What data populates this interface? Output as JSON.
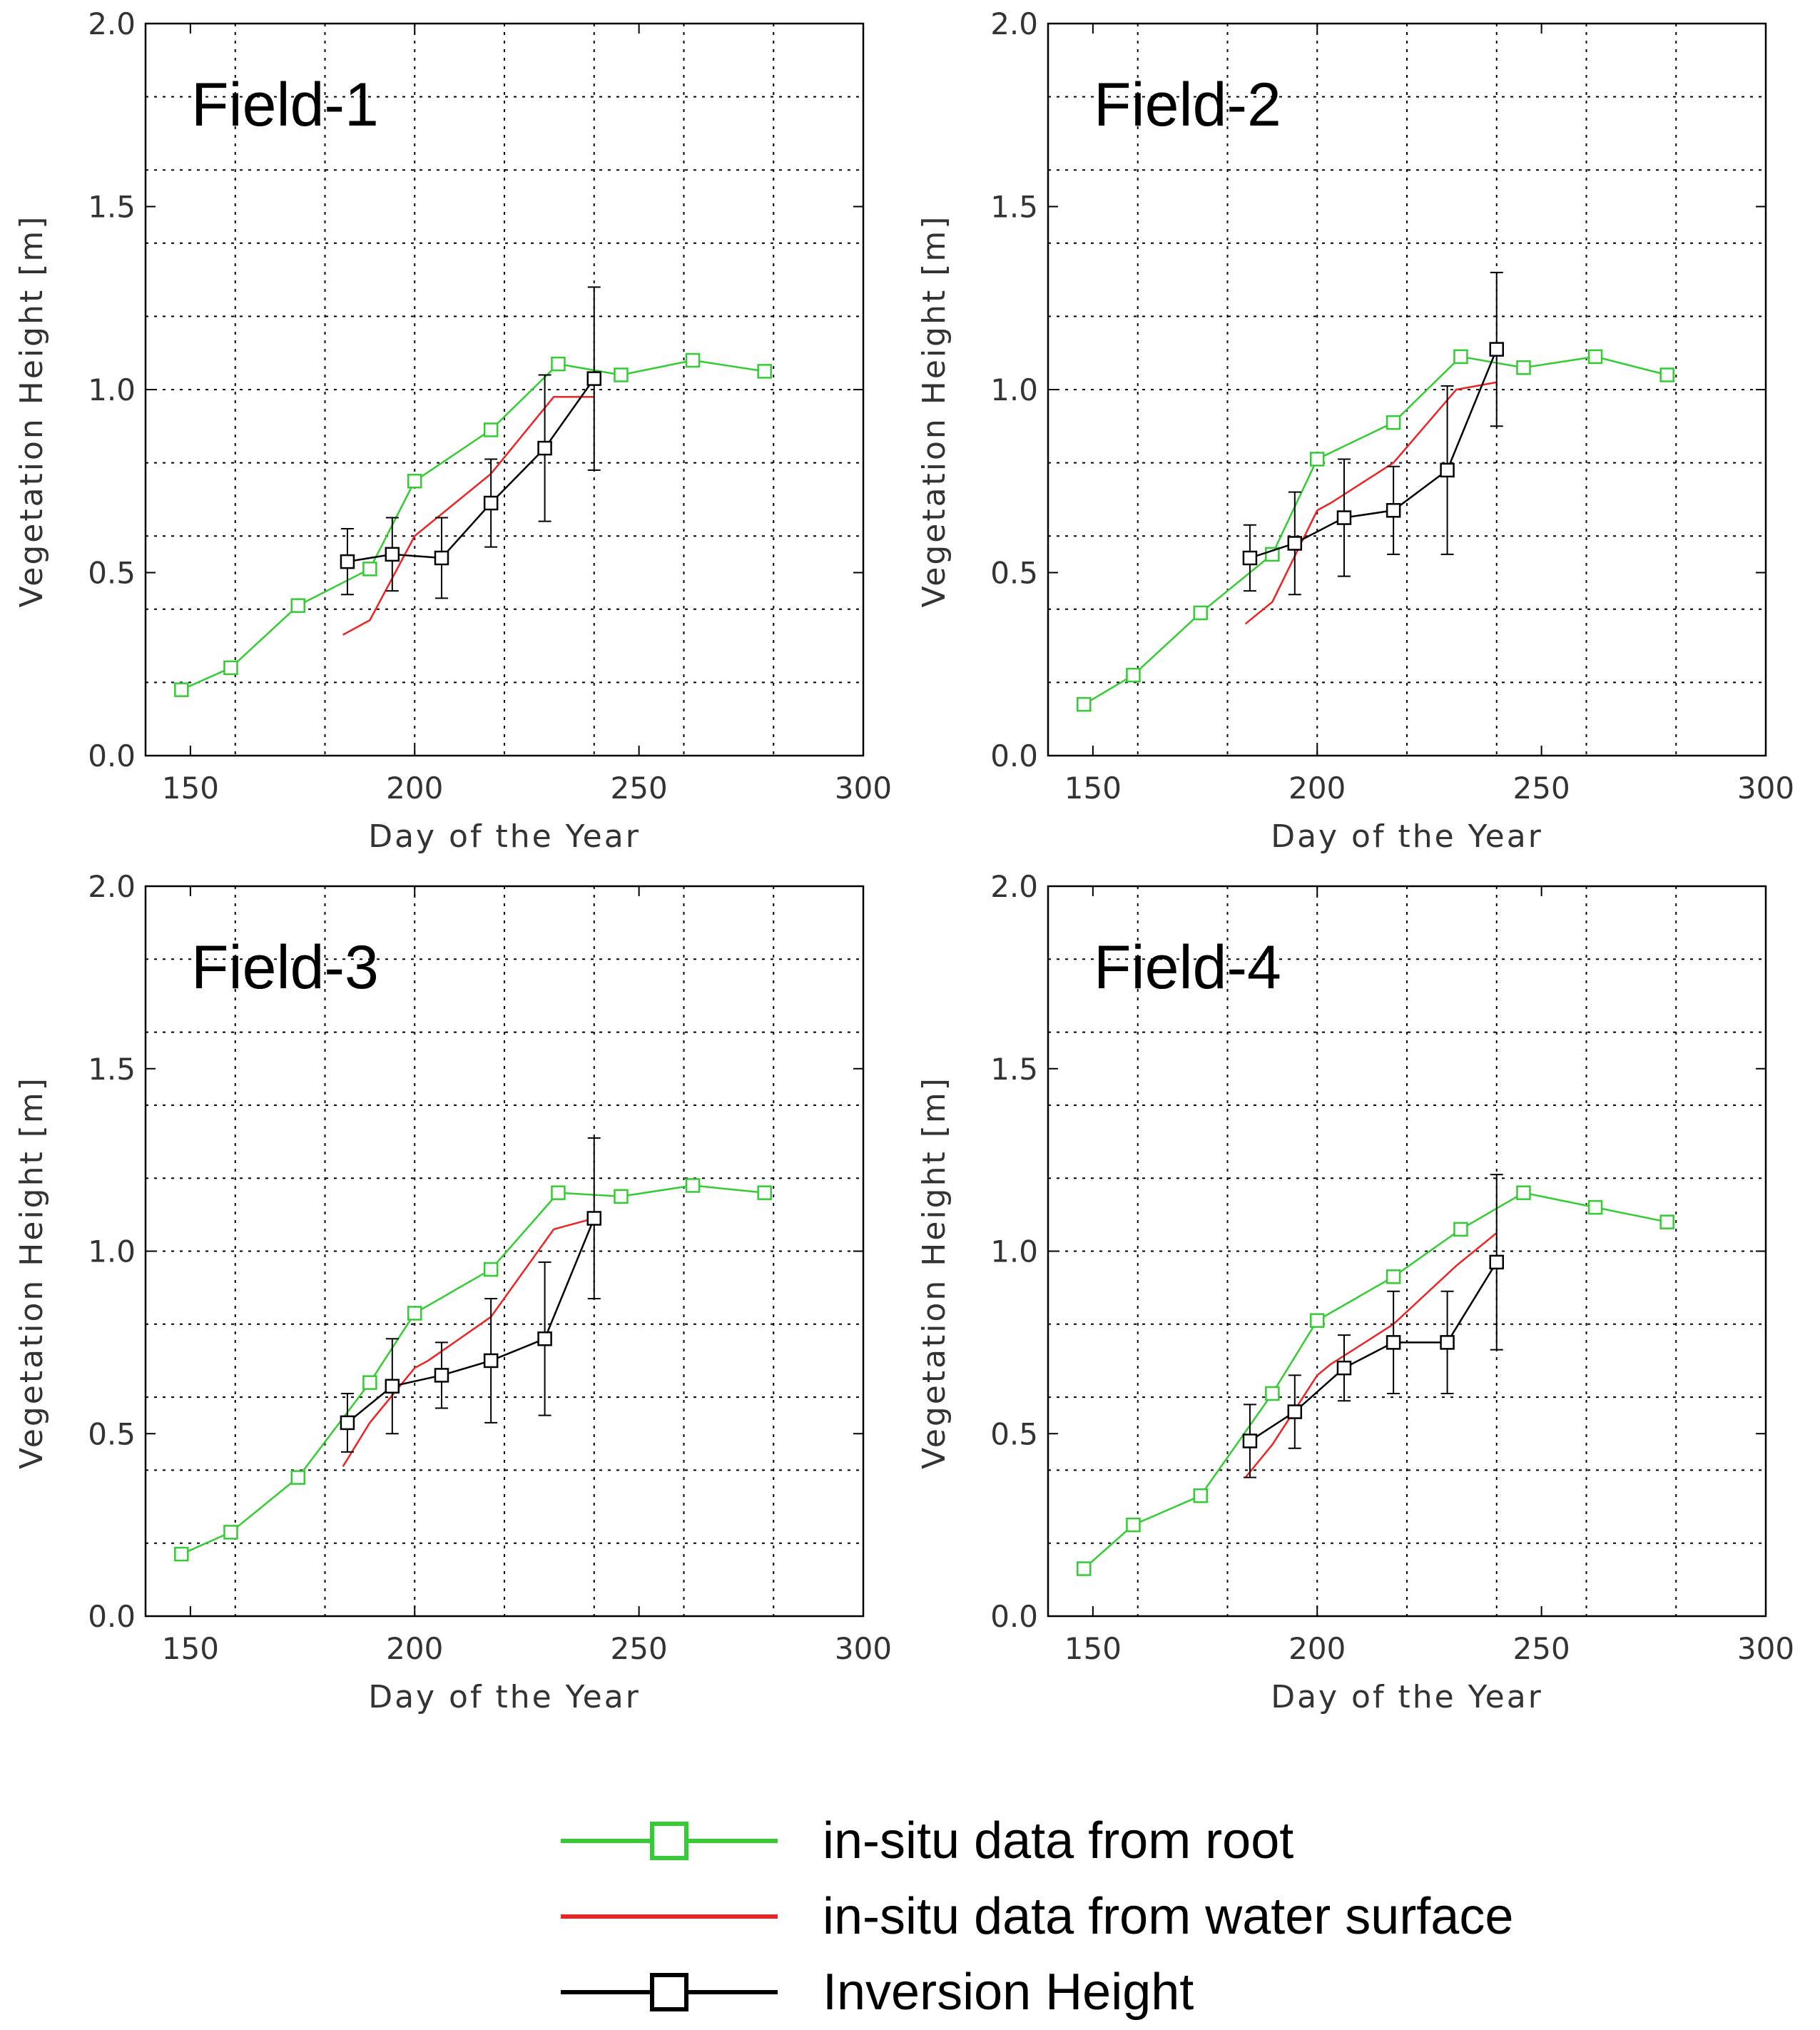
{
  "chart_data": [
    {
      "type": "line",
      "title": "Field-1",
      "xlabel": "Day of the Year",
      "ylabel": "Vegetation Height [m]",
      "xlim": [
        140,
        300
      ],
      "ylim": [
        0.0,
        2.0
      ],
      "xticks": [
        "150",
        "200",
        "250",
        "300"
      ],
      "yticks": [
        "0.0",
        "0.5",
        "1.0",
        "1.5",
        "2.0"
      ],
      "series": [
        {
          "name": "in-situ data from root",
          "color": "#33cc33",
          "marker": "square",
          "x": [
            148,
            159,
            174,
            190,
            200,
            217,
            232,
            246,
            262,
            278
          ],
          "y": [
            0.18,
            0.24,
            0.41,
            0.51,
            0.75,
            0.89,
            1.07,
            1.04,
            1.08,
            1.05
          ]
        },
        {
          "name": "in-situ data from water surface",
          "color": "#ee2222",
          "marker": "none",
          "x": [
            184,
            190,
            200,
            217,
            231,
            240
          ],
          "y": [
            0.33,
            0.37,
            0.6,
            0.77,
            0.98,
            0.98
          ]
        },
        {
          "name": "Inversion Height",
          "color": "#000000",
          "marker": "square",
          "x": [
            185,
            195,
            206,
            217,
            229,
            240
          ],
          "y": [
            0.53,
            0.55,
            0.54,
            0.69,
            0.84,
            1.03
          ],
          "err": [
            0.09,
            0.1,
            0.11,
            0.12,
            0.2,
            0.25
          ]
        }
      ]
    },
    {
      "type": "line",
      "title": "Field-2",
      "xlabel": "Day of the Year",
      "ylabel": "Vegetation Height [m]",
      "xlim": [
        140,
        300
      ],
      "ylim": [
        0.0,
        2.0
      ],
      "xticks": [
        "150",
        "200",
        "250",
        "300"
      ],
      "yticks": [
        "0.0",
        "0.5",
        "1.0",
        "1.5",
        "2.0"
      ],
      "series": [
        {
          "name": "in-situ data from root",
          "color": "#33cc33",
          "marker": "square",
          "x": [
            148,
            159,
            174,
            190,
            200,
            217,
            232,
            246,
            262,
            278
          ],
          "y": [
            0.14,
            0.22,
            0.39,
            0.55,
            0.81,
            0.91,
            1.09,
            1.06,
            1.09,
            1.04
          ]
        },
        {
          "name": "in-situ data from water surface",
          "color": "#ee2222",
          "marker": "none",
          "x": [
            184,
            190,
            200,
            203,
            217,
            231,
            240
          ],
          "y": [
            0.36,
            0.42,
            0.67,
            0.69,
            0.8,
            1.0,
            1.02
          ]
        },
        {
          "name": "Inversion Height",
          "color": "#000000",
          "marker": "square",
          "x": [
            185,
            195,
            206,
            217,
            229,
            240
          ],
          "y": [
            0.54,
            0.58,
            0.65,
            0.67,
            0.78,
            1.11
          ],
          "err": [
            0.09,
            0.14,
            0.16,
            0.12,
            0.23,
            0.21
          ]
        }
      ]
    },
    {
      "type": "line",
      "title": "Field-3",
      "xlabel": "Day of the Year",
      "ylabel": "Vegetation Height [m]",
      "xlim": [
        140,
        300
      ],
      "ylim": [
        0.0,
        2.0
      ],
      "xticks": [
        "150",
        "200",
        "250",
        "300"
      ],
      "yticks": [
        "0.0",
        "0.5",
        "1.0",
        "1.5",
        "2.0"
      ],
      "series": [
        {
          "name": "in-situ data from root",
          "color": "#33cc33",
          "marker": "square",
          "x": [
            148,
            159,
            174,
            190,
            200,
            217,
            232,
            246,
            262,
            278
          ],
          "y": [
            0.17,
            0.23,
            0.38,
            0.64,
            0.83,
            0.95,
            1.16,
            1.15,
            1.18,
            1.16
          ]
        },
        {
          "name": "in-situ data from water surface",
          "color": "#ee2222",
          "marker": "none",
          "x": [
            184,
            190,
            200,
            203,
            217,
            231,
            240
          ],
          "y": [
            0.41,
            0.53,
            0.68,
            0.7,
            0.82,
            1.06,
            1.09
          ]
        },
        {
          "name": "Inversion Height",
          "color": "#000000",
          "marker": "square",
          "x": [
            185,
            195,
            206,
            217,
            229,
            240
          ],
          "y": [
            0.53,
            0.63,
            0.66,
            0.7,
            0.76,
            1.09
          ],
          "err": [
            0.08,
            0.13,
            0.09,
            0.17,
            0.21,
            0.22
          ]
        }
      ]
    },
    {
      "type": "line",
      "title": "Field-4",
      "xlabel": "Day of the Year",
      "ylabel": "Vegetation Height [m]",
      "xlim": [
        140,
        300
      ],
      "ylim": [
        0.0,
        2.0
      ],
      "xticks": [
        "150",
        "200",
        "250",
        "300"
      ],
      "yticks": [
        "0.0",
        "0.5",
        "1.0",
        "1.5",
        "2.0"
      ],
      "series": [
        {
          "name": "in-situ data from root",
          "color": "#33cc33",
          "marker": "square",
          "x": [
            148,
            159,
            174,
            190,
            200,
            217,
            232,
            246,
            262,
            278
          ],
          "y": [
            0.13,
            0.25,
            0.33,
            0.61,
            0.81,
            0.93,
            1.06,
            1.16,
            1.12,
            1.08
          ]
        },
        {
          "name": "in-situ data from water surface",
          "color": "#ee2222",
          "marker": "none",
          "x": [
            184,
            190,
            200,
            203,
            217,
            231,
            240
          ],
          "y": [
            0.38,
            0.47,
            0.66,
            0.69,
            0.8,
            0.96,
            1.05
          ]
        },
        {
          "name": "Inversion Height",
          "color": "#000000",
          "marker": "square",
          "x": [
            185,
            195,
            206,
            217,
            229,
            240
          ],
          "y": [
            0.48,
            0.56,
            0.68,
            0.75,
            0.75,
            0.97
          ],
          "err": [
            0.1,
            0.1,
            0.09,
            0.14,
            0.14,
            0.24
          ]
        }
      ]
    }
  ],
  "legend": {
    "items": [
      {
        "label": "in-situ data from root",
        "color": "#33cc33",
        "marker": "square"
      },
      {
        "label": "in-situ data from water surface",
        "color": "#ee2222",
        "marker": "none"
      },
      {
        "label": "Inversion Height",
        "color": "#000000",
        "marker": "square"
      }
    ]
  }
}
